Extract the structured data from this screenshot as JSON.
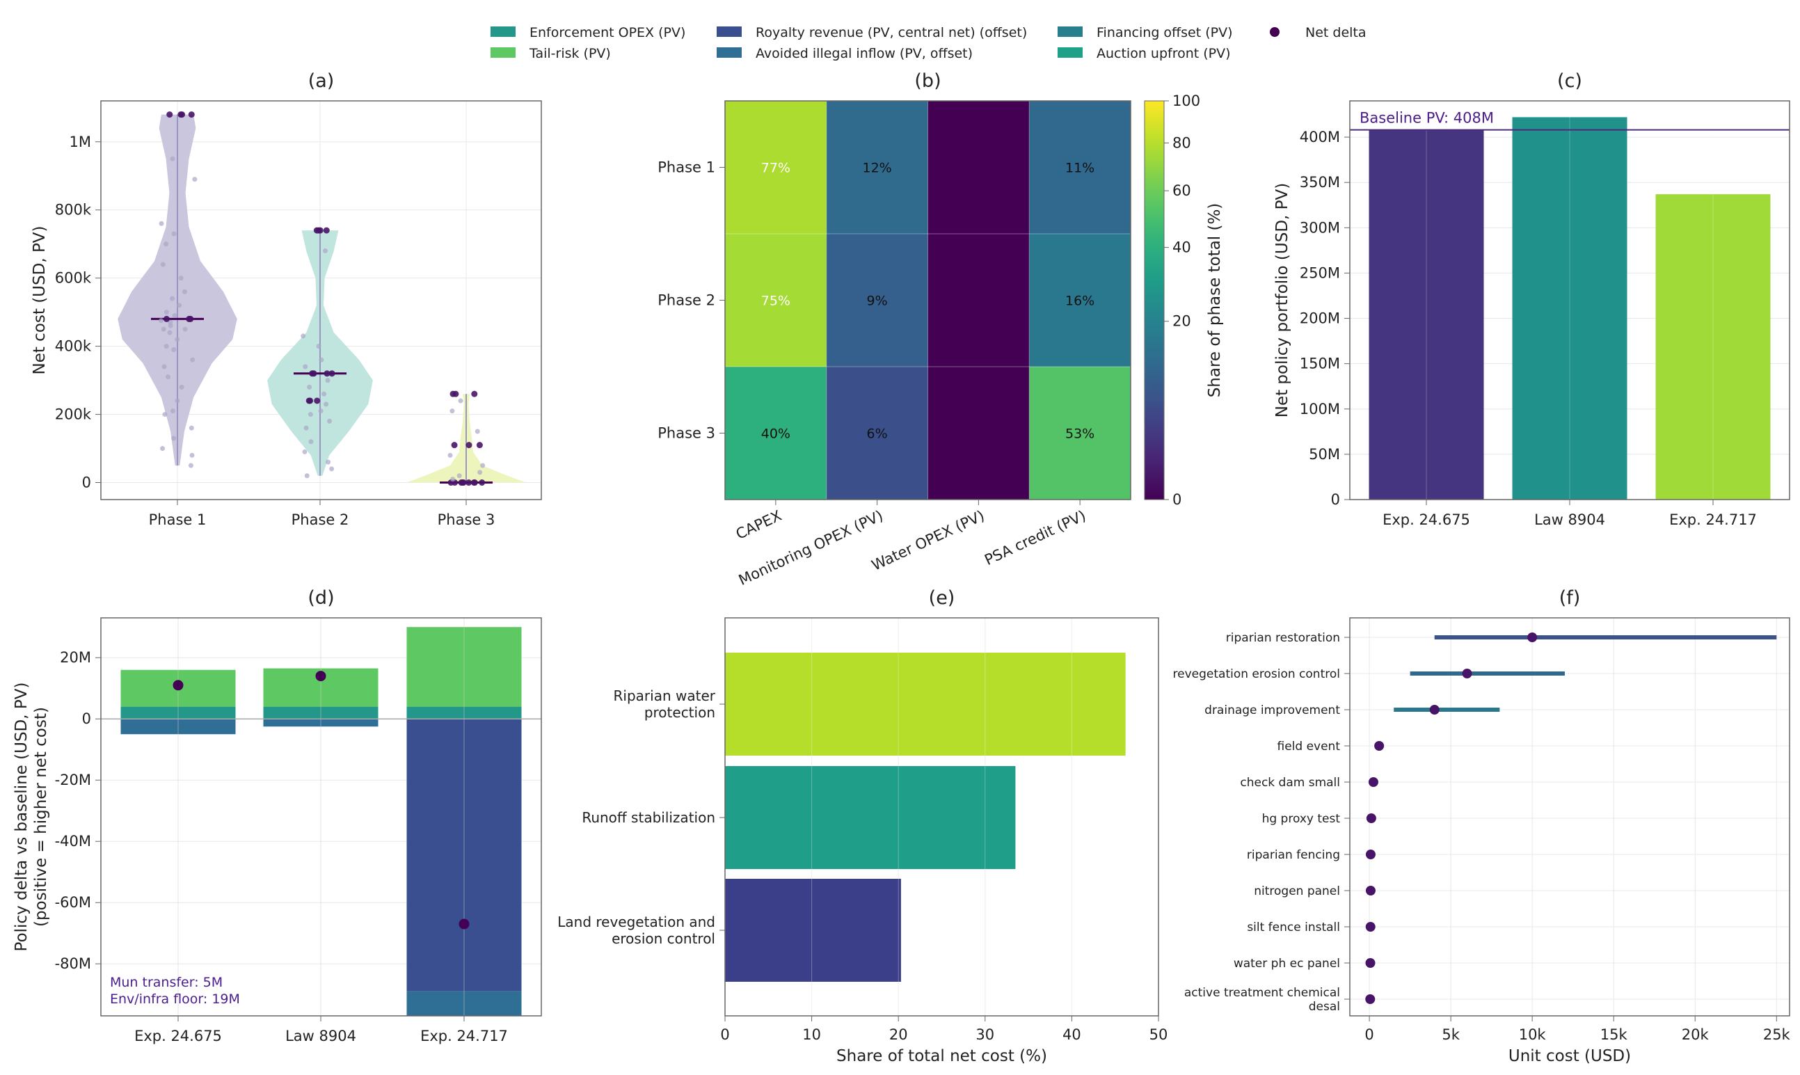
{
  "colors": {
    "violet_dark": "#3b2f7a",
    "violet": "#45347f",
    "purple_deep": "#440154",
    "purple_mid": "#481467",
    "blue_dark": "#3a5591",
    "steel": "#336b9a",
    "teal_dark": "#277f8e",
    "teal": "#21918c",
    "teal_green": "#1fa187",
    "green": "#2fb47c",
    "green_light": "#5ec962",
    "lime": "#b5de2b",
    "yellow": "#fde725",
    "violin1": "#c7c3dc",
    "violin2": "#bde3dc",
    "violin3": "#ecf3b8",
    "grid": "#e8e8e8",
    "axis": "#666666"
  },
  "legend": [
    {
      "label": "Enforcement OPEX (PV)",
      "color": "#23978a",
      "marker": "box"
    },
    {
      "label": "Tail-risk (PV)",
      "color": "#5ec962",
      "marker": "box"
    },
    {
      "label": "Royalty revenue (PV, central net) (offset)",
      "color": "#3a4f8f",
      "marker": "box"
    },
    {
      "label": "Avoided illegal inflow (PV, offset)",
      "color": "#2f6e95",
      "marker": "box"
    },
    {
      "label": "Financing offset (PV)",
      "color": "#277f8e",
      "marker": "box"
    },
    {
      "label": "Auction upfront (PV)",
      "color": "#1fa187",
      "marker": "box"
    },
    {
      "label": "Net delta",
      "color": "#440154",
      "marker": "dot"
    }
  ],
  "chart_data": [
    {
      "panel": "a",
      "title": "(a)",
      "type": "violin",
      "ylabel": "Net cost (USD, PV)",
      "ylim": [
        -50000,
        1120000
      ],
      "yticks": [
        0,
        200000,
        400000,
        600000,
        800000,
        1000000
      ],
      "ytick_labels": [
        "0",
        "200k",
        "400k",
        "600k",
        "800k",
        "1M"
      ],
      "categories": [
        "Phase 1",
        "Phase 2",
        "Phase 3"
      ],
      "groups": [
        {
          "name": "Phase 1",
          "color": "#c7c3dc",
          "min": 50000,
          "max": 1080000,
          "median": 480000,
          "profile": [
            [
              50000,
              0.02
            ],
            [
              150000,
              0.06
            ],
            [
              250000,
              0.14
            ],
            [
              350000,
              0.3
            ],
            [
              420000,
              0.48
            ],
            [
              480000,
              0.52
            ],
            [
              560000,
              0.4
            ],
            [
              650000,
              0.2
            ],
            [
              750000,
              0.1
            ],
            [
              850000,
              0.07
            ],
            [
              950000,
              0.1
            ],
            [
              1040000,
              0.16
            ],
            [
              1080000,
              0.14
            ]
          ],
          "points": [
            50000,
            80000,
            100000,
            130000,
            160000,
            200000,
            210000,
            240000,
            280000,
            310000,
            340000,
            360000,
            390000,
            400000,
            420000,
            440000,
            450000,
            450000,
            460000,
            470000,
            475000,
            480000,
            480000,
            480000,
            490000,
            500000,
            520000,
            540000,
            560000,
            600000,
            640000,
            700000,
            730000,
            760000,
            890000,
            950000,
            1080000,
            1080000,
            1080000,
            1080000
          ]
        },
        {
          "name": "Phase 2",
          "color": "#bde3dc",
          "min": 20000,
          "max": 740000,
          "median": 320000,
          "profile": [
            [
              20000,
              0.02
            ],
            [
              80000,
              0.08
            ],
            [
              150000,
              0.25
            ],
            [
              230000,
              0.42
            ],
            [
              300000,
              0.46
            ],
            [
              360000,
              0.34
            ],
            [
              440000,
              0.12
            ],
            [
              520000,
              0.03
            ],
            [
              600000,
              0.04
            ],
            [
              680000,
              0.12
            ],
            [
              740000,
              0.16
            ]
          ],
          "points": [
            20000,
            40000,
            60000,
            90000,
            120000,
            160000,
            180000,
            200000,
            210000,
            230000,
            240000,
            240000,
            240000,
            260000,
            280000,
            300000,
            320000,
            320000,
            320000,
            320000,
            340000,
            360000,
            400000,
            430000,
            680000,
            740000,
            740000,
            740000,
            740000
          ]
        },
        {
          "name": "Phase 3",
          "color": "#ecf3b8",
          "min": 0,
          "max": 260000,
          "median": 0,
          "profile": [
            [
              0,
              0.52
            ],
            [
              20000,
              0.36
            ],
            [
              50000,
              0.14
            ],
            [
              90000,
              0.06
            ],
            [
              130000,
              0.05
            ],
            [
              180000,
              0.03
            ],
            [
              230000,
              0.02
            ],
            [
              260000,
              0.03
            ]
          ],
          "points": [
            0,
            0,
            0,
            0,
            0,
            0,
            0,
            0,
            0,
            10000,
            20000,
            30000,
            50000,
            80000,
            110000,
            110000,
            110000,
            150000,
            210000,
            240000,
            260000,
            260000,
            260000
          ]
        }
      ]
    },
    {
      "panel": "b",
      "title": "(b)",
      "type": "heatmap",
      "rows": [
        "Phase 1",
        "Phase 2",
        "Phase 3"
      ],
      "columns": [
        "CAPEX",
        "Monitoring OPEX (PV)",
        "Water OPEX (PV)",
        "PSA credit (PV)"
      ],
      "values": [
        [
          77,
          12,
          0,
          11
        ],
        [
          75,
          9,
          0,
          16
        ],
        [
          40,
          6,
          0,
          53
        ]
      ],
      "labels": [
        [
          "77%",
          "12%",
          "",
          "11%"
        ],
        [
          "75%",
          "9%",
          "",
          "16%"
        ],
        [
          "40%",
          "6%",
          "",
          "53%"
        ]
      ],
      "colorbar": {
        "label": "Share of phase total (%)",
        "ticks": [
          0,
          20,
          40,
          60,
          80,
          100
        ],
        "range": [
          0,
          100
        ],
        "scale": "sqrt"
      }
    },
    {
      "panel": "c",
      "title": "(c)",
      "type": "bar",
      "ylabel": "Net policy portfolio (USD, PV)",
      "categories": [
        "Exp. 24.675",
        "Law 8904",
        "Exp. 24.717"
      ],
      "values": [
        408,
        422,
        337
      ],
      "units": "M",
      "bar_colors": [
        "#45347f",
        "#21918c",
        "#a0da39"
      ],
      "ylim": [
        0,
        440
      ],
      "yticks": [
        0,
        50,
        100,
        150,
        200,
        250,
        300,
        350,
        400
      ],
      "ytick_labels": [
        "0",
        "50M",
        "100M",
        "150M",
        "200M",
        "250M",
        "300M",
        "350M",
        "400M"
      ],
      "baseline": 408,
      "baseline_label": "Baseline PV: 408M"
    },
    {
      "panel": "d",
      "title": "(d)",
      "type": "stacked-bar",
      "ylabel": "Policy delta vs baseline (USD, PV)",
      "ylabel2": "(positive = higher net cost)",
      "categories": [
        "Exp. 24.675",
        "Law 8904",
        "Exp. 24.717"
      ],
      "ylim": [
        -97,
        33
      ],
      "yticks": [
        20,
        0,
        -20,
        -40,
        -60,
        -80
      ],
      "ytick_labels": [
        "20M",
        "0",
        "-20M",
        "-40M",
        "-60M",
        "-80M"
      ],
      "positive_stacks": [
        [
          {
            "name": "Enforcement OPEX (PV)",
            "value": 4,
            "color": "#23978a"
          },
          {
            "name": "Tail-risk (PV)",
            "value": 12,
            "color": "#5ec962"
          }
        ],
        [
          {
            "name": "Enforcement OPEX (PV)",
            "value": 4,
            "color": "#23978a"
          },
          {
            "name": "Tail-risk (PV)",
            "value": 12.5,
            "color": "#5ec962"
          }
        ],
        [
          {
            "name": "Enforcement OPEX (PV)",
            "value": 4,
            "color": "#23978a"
          },
          {
            "name": "Tail-risk (PV)",
            "value": 26,
            "color": "#5ec962"
          }
        ]
      ],
      "negative_stacks": [
        [
          {
            "name": "Avoided illegal inflow (PV, offset)",
            "value": -5,
            "color": "#2f6e95"
          }
        ],
        [
          {
            "name": "Avoided illegal inflow (PV, offset)",
            "value": -2.5,
            "color": "#2f6e95"
          }
        ],
        [
          {
            "name": "Royalty revenue (PV, central net) (offset)",
            "value": -89,
            "color": "#3a4f8f"
          },
          {
            "name": "Avoided illegal inflow (PV, offset)",
            "value": -8,
            "color": "#2f6e95"
          }
        ]
      ],
      "net_delta": [
        11,
        14,
        -67
      ],
      "annotations": [
        "Mun transfer: 5M",
        "Env/infra floor: 19M"
      ]
    },
    {
      "panel": "e",
      "title": "(e)",
      "type": "barh",
      "xlabel": "Share of total net cost (%)",
      "categories": [
        "Riparian water protection",
        "Runoff stabilization",
        "Land revegetation and erosion control"
      ],
      "category_lines": [
        [
          "Riparian water",
          "protection"
        ],
        [
          "Runoff stabilization"
        ],
        [
          "Land revegetation and",
          "erosion control"
        ]
      ],
      "values": [
        46.2,
        33.5,
        20.3
      ],
      "bar_colors": [
        "#b5de2b",
        "#1f9e89",
        "#3b3f8a"
      ],
      "xlim": [
        0,
        50
      ],
      "xticks": [
        0,
        10,
        20,
        30,
        40,
        50
      ]
    },
    {
      "panel": "f",
      "title": "(f)",
      "type": "dot-range",
      "xlabel": "Unit cost (USD)",
      "categories": [
        "riparian restoration",
        "revegetation erosion control",
        "drainage improvement",
        "field event",
        "check dam small",
        "hg proxy test",
        "riparian fencing",
        "nitrogen panel",
        "silt fence install",
        "water ph ec panel",
        "active treatment chemical desal"
      ],
      "category_lines": [
        [
          "riparian restoration"
        ],
        [
          "revegetation erosion control"
        ],
        [
          "drainage improvement"
        ],
        [
          "field event"
        ],
        [
          "check dam small"
        ],
        [
          "hg proxy test"
        ],
        [
          "riparian fencing"
        ],
        [
          "nitrogen panel"
        ],
        [
          "silt fence install"
        ],
        [
          "water ph ec panel"
        ],
        [
          "active treatment chemical",
          "desal"
        ]
      ],
      "values": [
        10000,
        6000,
        4000,
        600,
        250,
        120,
        80,
        80,
        70,
        60,
        50
      ],
      "low": [
        4000,
        2500,
        1500,
        null,
        null,
        null,
        null,
        null,
        null,
        null,
        null
      ],
      "high": [
        25000,
        12000,
        8000,
        null,
        null,
        null,
        null,
        null,
        null,
        null,
        null
      ],
      "range_colors": [
        "#3b528b",
        "#31688e",
        "#2a788e"
      ],
      "xlim": [
        -1200,
        25800
      ],
      "xticks": [
        0,
        5000,
        10000,
        15000,
        20000,
        25000
      ],
      "xtick_labels": [
        "0",
        "5k",
        "10k",
        "15k",
        "20k",
        "25k"
      ]
    }
  ]
}
